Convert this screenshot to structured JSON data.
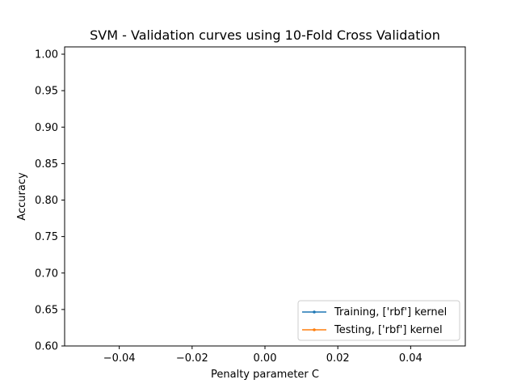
{
  "chart_data": {
    "type": "line",
    "title": "SVM - Validation curves using 10-Fold Cross Validation",
    "xlabel": "Penalty parameter C",
    "ylabel": "Accuracy",
    "xlim": [
      -0.055,
      0.055
    ],
    "ylim": [
      0.6,
      1.01
    ],
    "xticks": [
      -0.04,
      -0.02,
      0.0,
      0.02,
      0.04
    ],
    "xtick_labels": [
      "−0.04",
      "−0.02",
      "0.00",
      "0.02",
      "0.04"
    ],
    "yticks": [
      0.6,
      0.65,
      0.7,
      0.75,
      0.8,
      0.85,
      0.9,
      0.95,
      1.0
    ],
    "ytick_labels": [
      "0.60",
      "0.65",
      "0.70",
      "0.75",
      "0.80",
      "0.85",
      "0.90",
      "0.95",
      "1.00"
    ],
    "grid": false,
    "legend_position": "lower-right",
    "series": [
      {
        "name": "Training, ['rbf'] kernel",
        "color": "#1f77b4",
        "marker": "dot",
        "x": [],
        "y": []
      },
      {
        "name": "Testing, ['rbf'] kernel",
        "color": "#ff7f0e",
        "marker": "dot",
        "x": [],
        "y": []
      }
    ]
  }
}
